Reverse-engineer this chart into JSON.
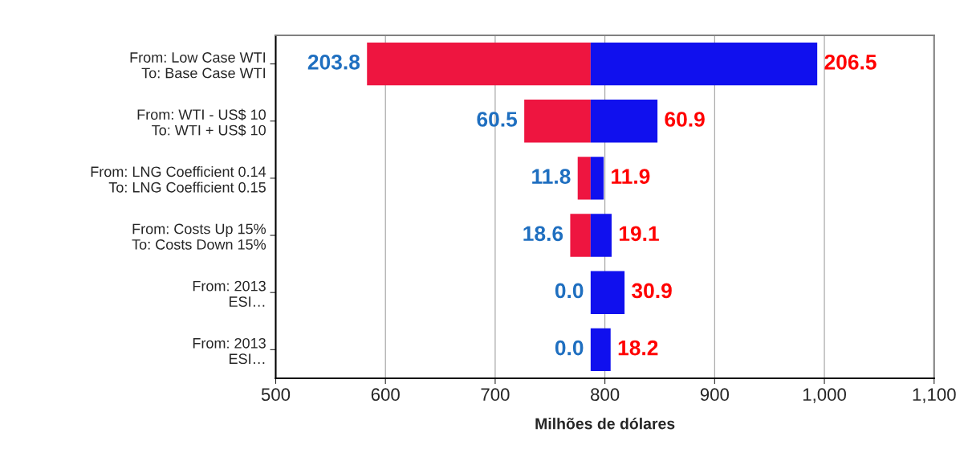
{
  "chart_data": {
    "type": "bar",
    "orientation": "horizontal",
    "xlabel": "Milhões de dólares",
    "categories": [
      "From: Low Case WTI\nTo: Base Case WTI",
      "From: WTI - US$ 10\nTo: WTI + US$ 10",
      "From: LNG Coefficient 0.14\nTo: LNG Coefficient 0.15",
      "From: Costs Up 15%\nTo: Costs Down 15%",
      "From: 2013\nESI…",
      "From: 2013\nESI…"
    ],
    "series": [
      {
        "color": "#ee1540",
        "base": [
          787,
          787,
          787,
          787,
          null,
          null
        ],
        "values": [
          -203.8,
          -60.5,
          -11.8,
          -18.6,
          null,
          null
        ],
        "value_labels": [
          "203.8",
          "60.5",
          "11.8",
          "18.6",
          "0.0",
          "0.0"
        ]
      },
      {
        "color": "#1010ee",
        "base": [
          787,
          787,
          787,
          787,
          787,
          787
        ],
        "values": [
          206.5,
          60.9,
          11.9,
          19.1,
          30.9,
          18.2
        ],
        "value_labels": [
          "206.5",
          "60.9",
          "11.9",
          "19.1",
          "30.9",
          "18.2"
        ]
      }
    ],
    "xlim": [
      500,
      1100
    ],
    "xticks": [
      500,
      600,
      700,
      800,
      900,
      {
        "value": 1000,
        "label": "1,000"
      },
      {
        "value": 1100,
        "label": "1,100"
      }
    ],
    "grid": "x",
    "legend": false
  }
}
